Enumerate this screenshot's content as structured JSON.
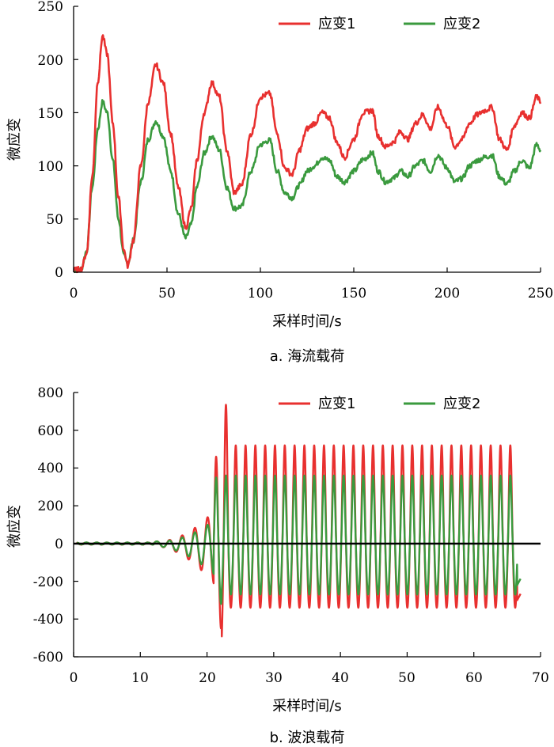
{
  "chart_data": [
    {
      "id": "current",
      "type": "line",
      "caption": "a. 海流载荷",
      "xlabel": "采样时间/s",
      "ylabel": "微应变",
      "xlim": [
        0,
        250
      ],
      "ylim": [
        0,
        250
      ],
      "xticks": [
        "0",
        "50",
        "100",
        "150",
        "200",
        "250"
      ],
      "yticks": [
        "0",
        "50",
        "100",
        "150",
        "200",
        "250"
      ],
      "legend": "top-right",
      "series": [
        {
          "name": "应变1",
          "color": "#e8302f",
          "x": [
            0,
            4,
            7,
            10,
            13,
            15.5,
            18,
            21,
            24,
            27,
            29,
            32,
            36,
            40,
            44,
            48,
            52,
            56,
            60,
            63,
            66,
            70,
            74,
            78,
            82,
            86,
            90,
            95,
            100,
            105,
            109,
            113,
            117,
            121,
            125,
            129,
            133,
            137,
            141,
            145,
            150,
            155,
            160,
            163,
            167,
            171,
            175,
            179,
            183,
            187,
            191,
            195,
            200,
            204,
            208,
            212,
            216,
            220,
            224,
            228,
            232,
            236,
            240,
            244,
            248,
            250
          ],
          "y": [
            2,
            3,
            18,
            90,
            180,
            222,
            205,
            140,
            70,
            20,
            6,
            30,
            100,
            160,
            195,
            178,
            130,
            80,
            42,
            60,
            105,
            150,
            178,
            165,
            115,
            75,
            82,
            130,
            165,
            168,
            130,
            98,
            92,
            115,
            135,
            140,
            150,
            145,
            122,
            108,
            125,
            150,
            152,
            128,
            118,
            122,
            132,
            125,
            140,
            148,
            135,
            155,
            138,
            118,
            125,
            140,
            148,
            152,
            155,
            125,
            115,
            138,
            150,
            145,
            165,
            160
          ]
        },
        {
          "name": "应变2",
          "color": "#3a9a3e",
          "x": [
            0,
            4,
            7,
            10,
            13,
            15.5,
            18,
            21,
            24,
            27,
            29,
            32,
            36,
            40,
            44,
            48,
            52,
            56,
            60,
            63,
            66,
            70,
            74,
            78,
            82,
            86,
            90,
            95,
            100,
            105,
            109,
            113,
            117,
            121,
            125,
            129,
            133,
            137,
            141,
            145,
            150,
            155,
            160,
            163,
            167,
            171,
            175,
            179,
            183,
            187,
            191,
            195,
            200,
            204,
            208,
            212,
            216,
            220,
            224,
            228,
            232,
            236,
            240,
            244,
            248,
            250
          ],
          "y": [
            2,
            3,
            20,
            80,
            135,
            160,
            150,
            105,
            50,
            15,
            8,
            30,
            85,
            125,
            142,
            128,
            95,
            55,
            32,
            45,
            80,
            112,
            128,
            115,
            80,
            60,
            62,
            95,
            120,
            124,
            95,
            75,
            70,
            82,
            95,
            100,
            108,
            105,
            90,
            85,
            95,
            106,
            112,
            95,
            85,
            88,
            95,
            90,
            100,
            105,
            95,
            110,
            98,
            85,
            88,
            100,
            105,
            108,
            110,
            90,
            83,
            95,
            105,
            98,
            120,
            115
          ]
        }
      ]
    },
    {
      "id": "wave",
      "type": "line",
      "caption": "b. 波浪载荷",
      "xlabel": "采样时间/s",
      "ylabel": "微应变",
      "xlim": [
        0,
        70
      ],
      "ylim": [
        -600,
        800
      ],
      "xticks": [
        "0",
        "10",
        "20",
        "30",
        "40",
        "50",
        "60",
        "70"
      ],
      "yticks": [
        "800",
        "600",
        "400",
        "200",
        "0",
        "-200",
        "-400",
        "-600"
      ],
      "zero_line": true,
      "legend": "top-right",
      "oscillation": {
        "start": 21,
        "end": 66.5,
        "period": 1.47,
        "strain1_peak": 520,
        "strain1_trough": -340,
        "strain2_peak": 360,
        "strain2_trough": -270,
        "notable_strain1_peak": 735,
        "notable_strain1_trough": -550
      },
      "series": [
        {
          "name": "应变1",
          "color": "#e8302f"
        },
        {
          "name": "应变2",
          "color": "#3a9a3e"
        }
      ]
    }
  ]
}
